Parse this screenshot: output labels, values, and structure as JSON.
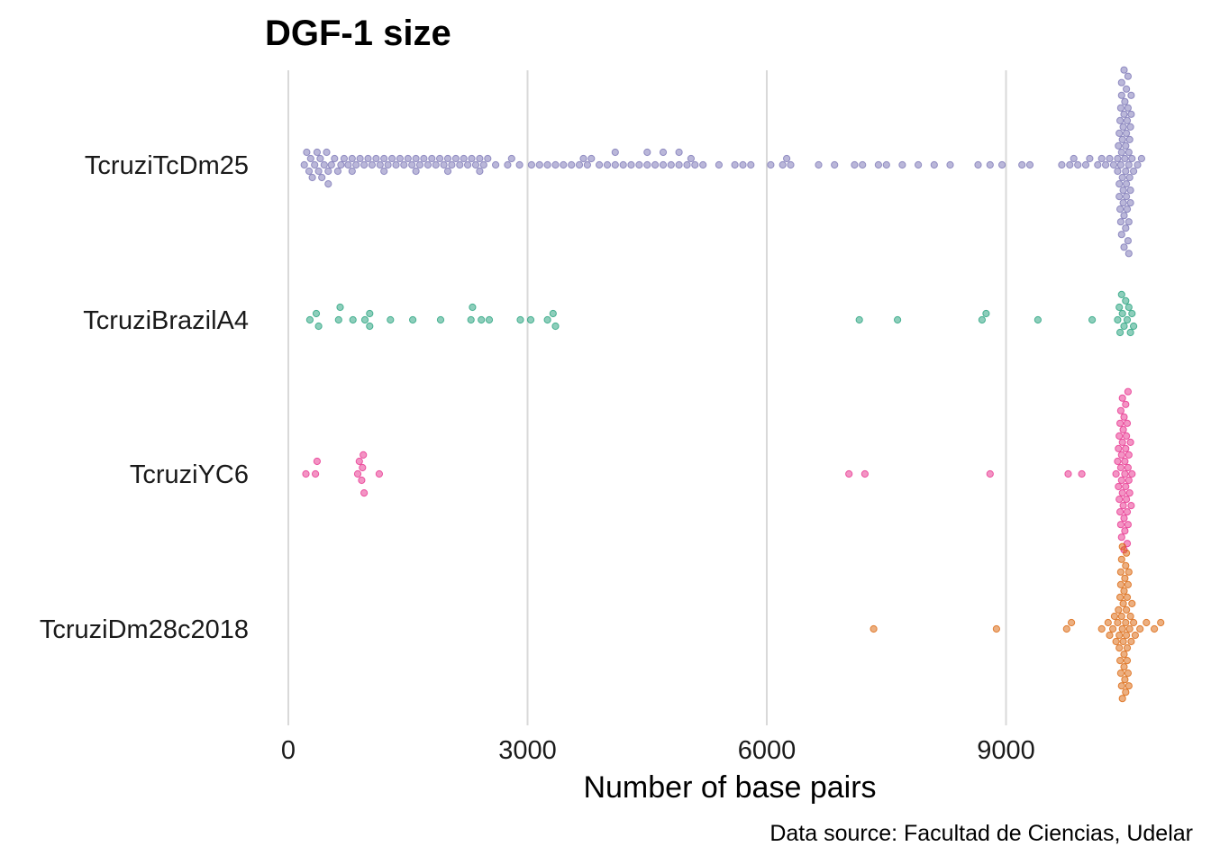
{
  "chart_data": {
    "type": "scatter",
    "subtype": "beeswarm",
    "title": "DGF-1 size",
    "xlabel": "Number of base pairs",
    "ylabel": "",
    "caption": "Data source: Facultad de Ciencias, Udelar",
    "xlim": [
      0,
      11000
    ],
    "xticks": [
      0,
      3000,
      6000,
      9000
    ],
    "xtick_labels": [
      "0",
      "3000",
      "6000",
      "9000"
    ],
    "grid": "vertical-major",
    "legend": "none",
    "categories": [
      "TcruziTcDm25",
      "TcruziBrazilA4",
      "TcruziYC6",
      "TcruziDm28c2018"
    ],
    "series": [
      {
        "category": "TcruziTcDm25",
        "color": "#7570b3",
        "values": [
          200,
          230,
          260,
          280,
          300,
          330,
          360,
          380,
          400,
          420,
          450,
          480,
          500,
          540,
          580,
          620,
          660,
          700,
          750,
          800,
          850,
          900,
          950,
          1000,
          1050,
          1100,
          1150,
          1200,
          1250,
          1300,
          1350,
          1400,
          1450,
          1500,
          1550,
          1600,
          1650,
          1700,
          1750,
          1800,
          1850,
          1900,
          1950,
          2000,
          2050,
          2100,
          2150,
          2200,
          2250,
          2300,
          2350,
          2400,
          2450,
          2500,
          2600,
          2750,
          2800,
          2900,
          3050,
          3150,
          3250,
          3350,
          3450,
          3550,
          3650,
          3750,
          3800,
          3900,
          4000,
          4100,
          4200,
          4300,
          4400,
          4500,
          4600,
          4700,
          4800,
          4900,
          5000,
          5100,
          5200,
          5400,
          5600,
          5700,
          5800,
          6050,
          6200,
          6250,
          6300,
          6650,
          6850,
          7100,
          7200,
          7400,
          7500,
          7700,
          7900,
          8100,
          8300,
          8650,
          8800,
          8950,
          9200,
          9300,
          9700,
          9800,
          9850,
          9900,
          10000,
          10050,
          10150,
          10200,
          10250,
          10300,
          10350,
          10400,
          10420,
          10440,
          10460,
          10480,
          10500,
          10520,
          10540,
          10560,
          10580,
          10600,
          10650,
          10700,
          500,
          800,
          1200,
          1600,
          2000,
          2400,
          3700,
          4100,
          4500,
          4700,
          4900,
          5050,
          10400,
          10430,
          10450,
          10470,
          10490,
          10510,
          10530,
          10550,
          10570,
          10420,
          10450,
          10480,
          10510,
          10540,
          10570,
          10430,
          10460,
          10490,
          10520,
          10550,
          10410,
          10440,
          10470,
          10500,
          10530,
          10560,
          10420,
          10450,
          10480,
          10510,
          10540,
          10440,
          10470,
          10500,
          10530,
          10560,
          10450,
          10480,
          10510,
          10540
        ]
      },
      {
        "category": "TcruziBrazilA4",
        "color": "#1b9e77",
        "values": [
          270,
          350,
          380,
          630,
          650,
          810,
          960,
          1020,
          1020,
          1280,
          1560,
          1910,
          2290,
          2310,
          2420,
          2520,
          2910,
          3040,
          3250,
          3320,
          3350,
          7160,
          7640,
          8700,
          8750,
          9400,
          10080,
          10400,
          10420,
          10430,
          10450,
          10460,
          10480,
          10500,
          10520,
          10540,
          10560,
          10580,
          10600
        ]
      },
      {
        "category": "TcruziYC6",
        "color": "#e7298a",
        "values": [
          220,
          340,
          360,
          870,
          890,
          920,
          930,
          940,
          950,
          1140,
          7030,
          7230,
          8800,
          9780,
          9950,
          10380,
          10400,
          10410,
          10420,
          10430,
          10440,
          10450,
          10460,
          10470,
          10480,
          10490,
          10500,
          10510,
          10520,
          10530,
          10540,
          10550,
          10560,
          10570,
          10580,
          10420,
          10440,
          10460,
          10480,
          10500,
          10520,
          10540,
          10430,
          10450,
          10470,
          10490,
          10510,
          10530,
          10410,
          10450,
          10490,
          10530,
          10440,
          10480,
          10520,
          10460,
          10500
        ]
      },
      {
        "category": "TcruziDm28c2018",
        "color": "#d95f02",
        "values": [
          7340,
          8880,
          9760,
          9820,
          10200,
          10280,
          10300,
          10340,
          10360,
          10380,
          10400,
          10410,
          10420,
          10430,
          10440,
          10450,
          10460,
          10470,
          10480,
          10490,
          10500,
          10510,
          10520,
          10530,
          10540,
          10550,
          10560,
          10570,
          10580,
          10600,
          10620,
          10680,
          10760,
          10860,
          10940,
          10420,
          10440,
          10460,
          10480,
          10500,
          10520,
          10540,
          10430,
          10450,
          10470,
          10490,
          10510,
          10530,
          10450,
          10480,
          10510,
          10460,
          10500,
          10440,
          10520
        ]
      }
    ]
  }
}
